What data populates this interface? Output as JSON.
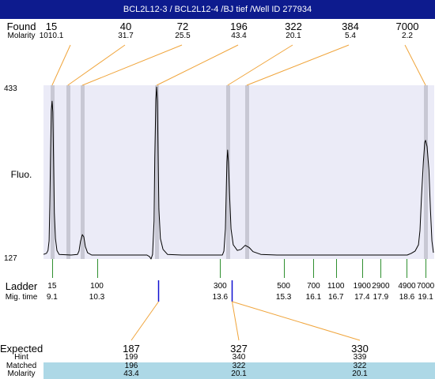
{
  "window": {
    "title": "BCL2L12-3 / BCL2L12-4 /BJ tief /Well ID 277934"
  },
  "colors": {
    "title_bar": "#0d1b8e",
    "title_text": "#ffffff",
    "plot_bg": "#ebebf7",
    "peak_band": "#c8c8d4",
    "trace": "#000000",
    "connector": "#f0a53c",
    "ladder_tick": "#2f8f2f",
    "expected_marker": "#1010d0",
    "matched_row_bg": "#add8e6"
  },
  "chart_data": {
    "type": "line",
    "xlabel": "Mig. time",
    "ylabel": "Fluo.",
    "xlim": [
      8.87,
      19.31
    ],
    "ylim": [
      127,
      433
    ],
    "y_ticks": [
      433,
      127
    ],
    "grid": false,
    "series": [
      {
        "x": [
          8.87,
          8.95,
          8.99,
          9.02,
          9.04,
          9.06,
          9.08,
          9.1,
          9.12,
          9.14,
          9.16,
          9.19,
          9.23,
          9.29,
          9.61,
          9.78,
          9.82,
          9.86,
          9.91,
          9.95,
          9.99,
          10.05,
          10.16,
          11.64,
          11.71,
          11.75,
          11.79,
          11.83,
          11.85,
          11.88,
          11.9,
          11.92,
          11.94,
          11.96,
          12.0,
          12.07,
          12.19,
          12.57,
          13.66,
          13.7,
          13.74,
          13.76,
          13.78,
          13.8,
          13.82,
          13.85,
          13.89,
          13.95,
          14.06,
          14.16,
          14.27,
          14.38,
          14.48,
          14.69,
          15.12,
          18.61,
          18.72,
          18.82,
          18.91,
          18.95,
          18.99,
          19.04,
          19.08,
          19.1,
          19.14,
          19.19,
          19.23,
          19.27,
          19.31
        ],
        "y": [
          135,
          137,
          142,
          159,
          222,
          319,
          389,
          405,
          386,
          298,
          208,
          163,
          142,
          135,
          134,
          135,
          141,
          158,
          170,
          166,
          149,
          138,
          134,
          134,
          131,
          127,
          135,
          194,
          305,
          409,
          430,
          405,
          305,
          215,
          163,
          144,
          135,
          134,
          134,
          141,
          180,
          236,
          298,
          319,
          298,
          242,
          180,
          152,
          142,
          144,
          151,
          147,
          140,
          135,
          134,
          134,
          137,
          141,
          152,
          177,
          236,
          298,
          333,
          336,
          325,
          284,
          215,
          159,
          138
        ]
      }
    ],
    "found": {
      "label": "Found",
      "molarity_label": "Molarity",
      "peaks": [
        {
          "size": "15",
          "molarity": "1010.1",
          "mig_time": 9.1
        },
        {
          "size": "40",
          "molarity": "31.7",
          "mig_time": 9.52
        },
        {
          "size": "72",
          "molarity": "25.5",
          "mig_time": 9.91
        },
        {
          "size": "196",
          "molarity": "43.4",
          "mig_time": 11.9
        },
        {
          "size": "322",
          "molarity": "20.1",
          "mig_time": 13.8
        },
        {
          "size": "384",
          "molarity": "5.4",
          "mig_time": 14.31
        },
        {
          "size": "7000",
          "molarity": "2.2",
          "mig_time": 19.1
        }
      ]
    },
    "ladder": {
      "label": "Ladder",
      "markers": [
        {
          "size": "15",
          "mig_time": "9.1"
        },
        {
          "size": "100",
          "mig_time": "10.3"
        },
        {
          "size": "300",
          "mig_time": "13.6"
        },
        {
          "size": "500",
          "mig_time": "15.3"
        },
        {
          "size": "700",
          "mig_time": "16.1"
        },
        {
          "size": "1100",
          "mig_time": "16.7"
        },
        {
          "size": "1900",
          "mig_time": "17.4"
        },
        {
          "size": "2900",
          "mig_time": "17.9"
        },
        {
          "size": "4900",
          "mig_time": "18.6"
        },
        {
          "size": "7000",
          "mig_time": "19.1"
        }
      ]
    },
    "expected": {
      "label": "Expected",
      "hint_label": "Hint",
      "matched_label": "Matched",
      "molarity_label": "Molarity",
      "rows": [
        {
          "expected": "187",
          "hint": "199",
          "matched": "196",
          "molarity": "43.4",
          "marker_mig_time": 11.94
        },
        {
          "expected": "327",
          "hint": "340",
          "matched": "322",
          "molarity": "20.1",
          "marker_mig_time": 13.91
        },
        {
          "expected": "330",
          "hint": "339",
          "matched": "322",
          "molarity": "20.1",
          "marker_mig_time": 13.91
        }
      ]
    }
  }
}
